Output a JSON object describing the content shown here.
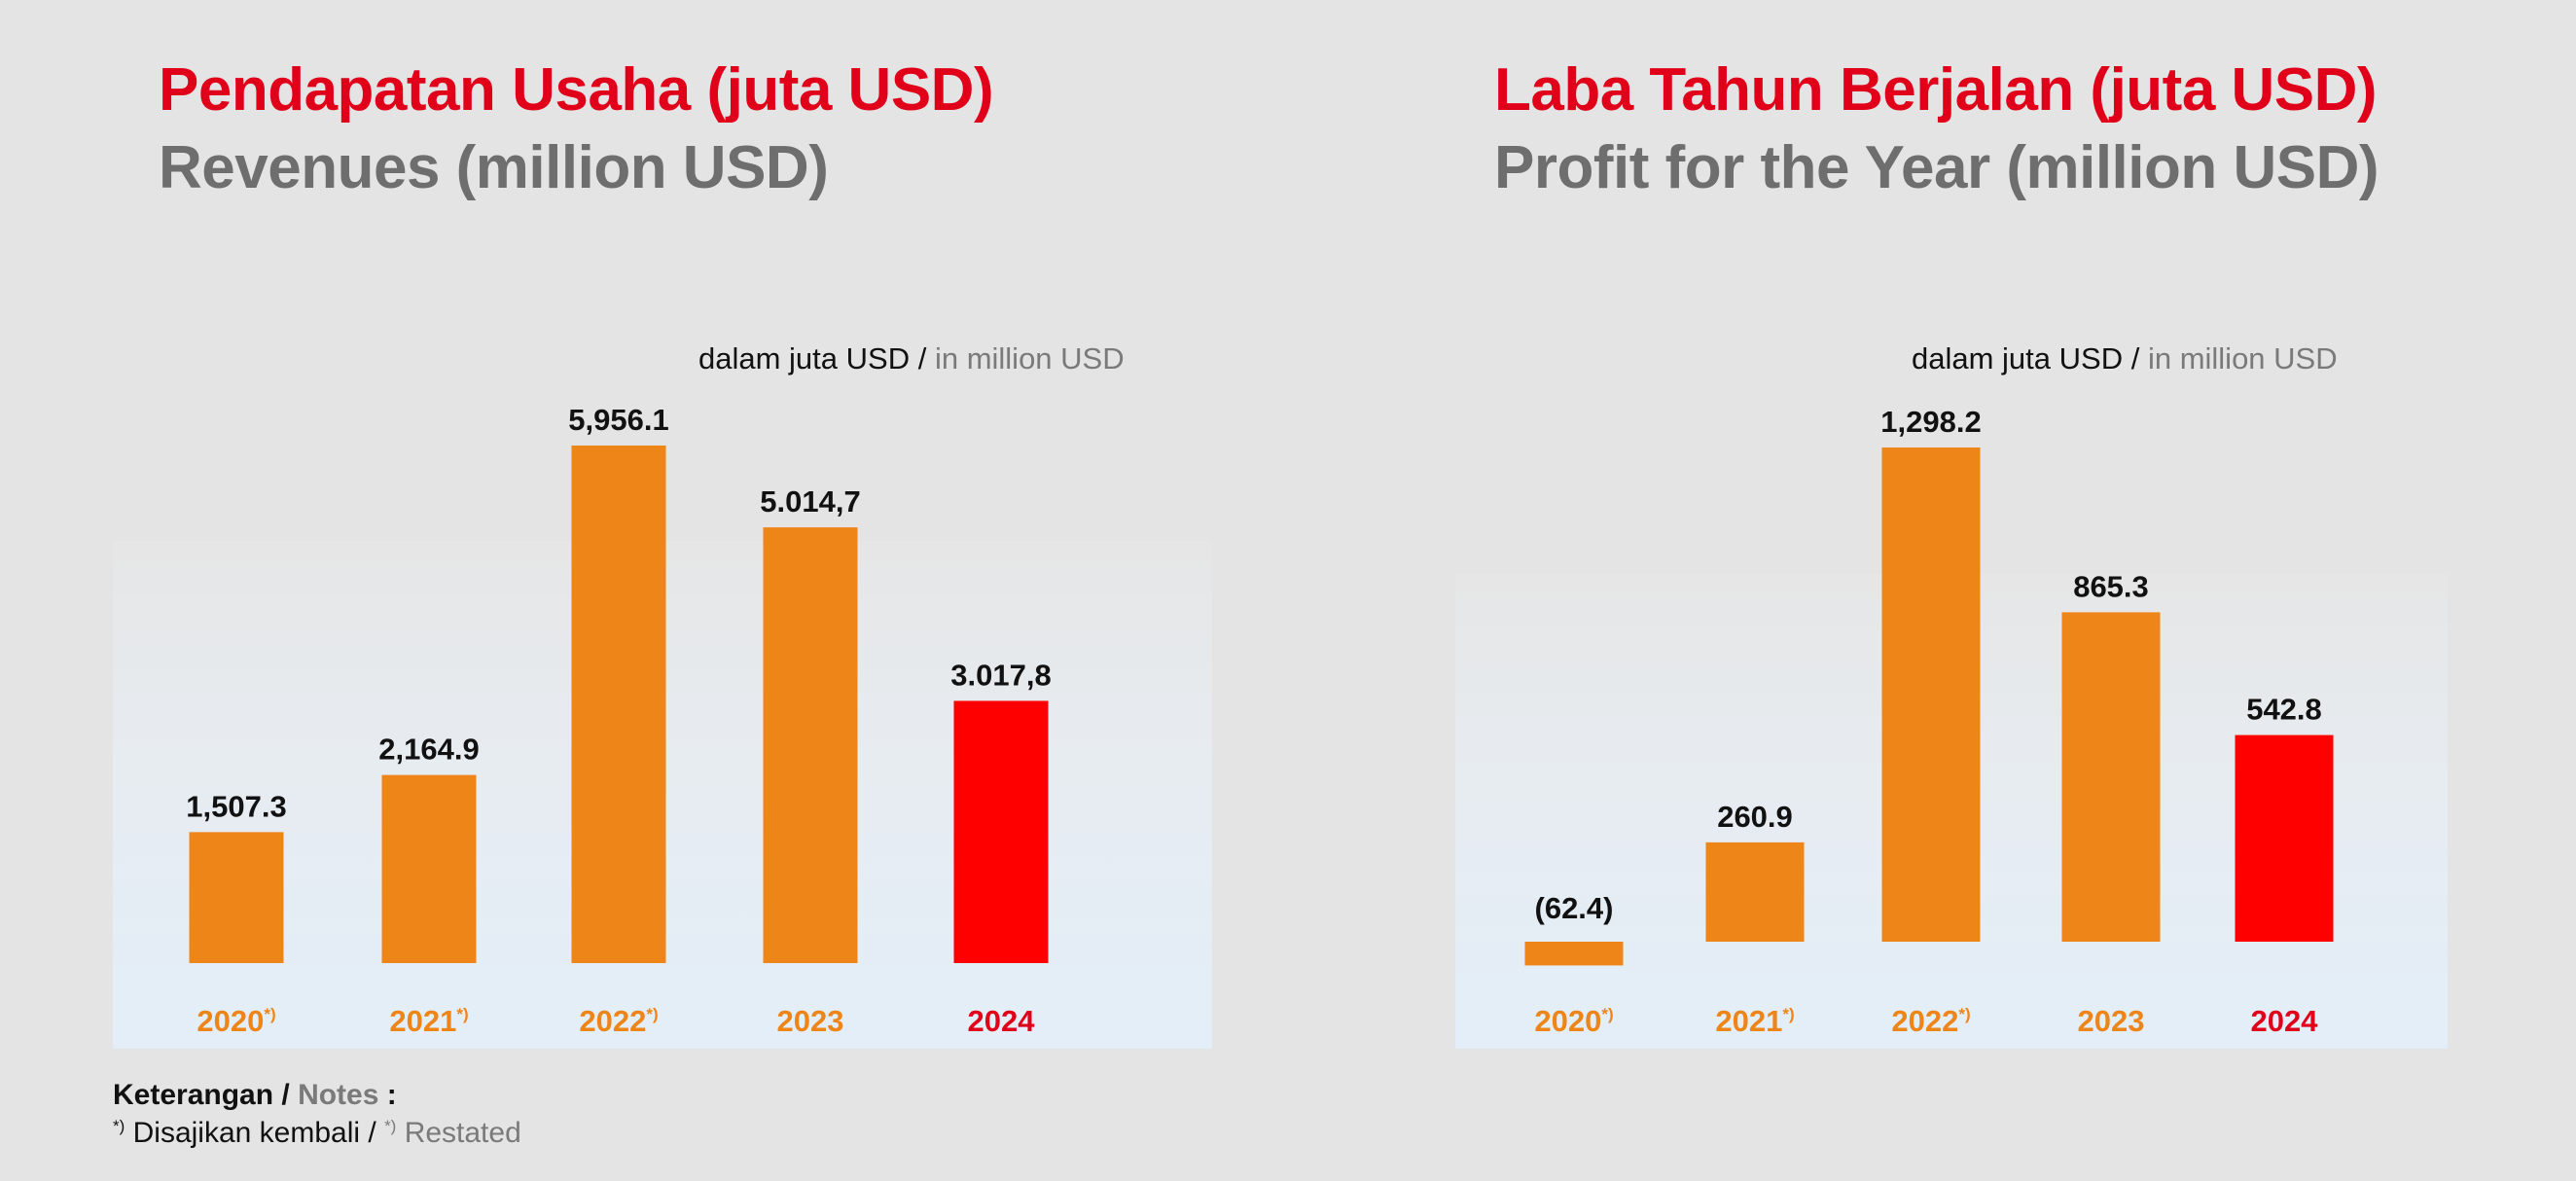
{
  "charts": [
    {
      "title_id": "Pendapatan Usaha (juta USD)",
      "title_en": "Revenues (million USD)",
      "unit_id": "dalam juta USD /",
      "unit_en": "in million USD"
    },
    {
      "title_id": "Laba Tahun Berjalan (juta USD)",
      "title_en": "Profit for the Year (million USD)",
      "unit_id": "dalam juta USD /",
      "unit_en": "in million USD"
    }
  ],
  "chart_data": [
    {
      "type": "bar",
      "title": "Pendapatan Usaha (juta USD) / Revenues (million USD)",
      "categories": [
        "2020*)",
        "2021*)",
        "2022*)",
        "2023",
        "2024"
      ],
      "values": [
        1507.3,
        2164.9,
        5956.1,
        5014.7,
        3017.8
      ],
      "value_labels": [
        "1,507.3",
        "2,164.9",
        "5,956.1",
        "5.014,7",
        "3.017,8"
      ],
      "category_labels": [
        {
          "year": "2020",
          "mark": "*)"
        },
        {
          "year": "2021",
          "mark": "*)"
        },
        {
          "year": "2022",
          "mark": "*)"
        },
        {
          "year": "2023",
          "mark": ""
        },
        {
          "year": "2024",
          "mark": ""
        }
      ],
      "bar_colors": [
        "#ed8519",
        "#ed8519",
        "#ed8519",
        "#ed8519",
        "#ff0000"
      ],
      "label_colors": [
        "#ed8519",
        "#ed8519",
        "#ed8519",
        "#ed8519",
        "#e1001a"
      ],
      "grid": false
    },
    {
      "type": "bar",
      "title": "Laba Tahun Berjalan (juta USD) / Profit for the Year (million USD)",
      "categories": [
        "2020*)",
        "2021*)",
        "2022*)",
        "2023",
        "2024"
      ],
      "values": [
        -62.4,
        260.9,
        1298.2,
        865.3,
        542.8
      ],
      "value_labels": [
        "(62.4)",
        "260.9",
        "1,298.2",
        "865.3",
        "542.8"
      ],
      "category_labels": [
        {
          "year": "2020",
          "mark": "*)"
        },
        {
          "year": "2021",
          "mark": "*)"
        },
        {
          "year": "2022",
          "mark": "*)"
        },
        {
          "year": "2023",
          "mark": ""
        },
        {
          "year": "2024",
          "mark": ""
        }
      ],
      "bar_colors": [
        "#ed8519",
        "#ed8519",
        "#ed8519",
        "#ed8519",
        "#ff0000"
      ],
      "label_colors": [
        "#ed8519",
        "#ed8519",
        "#ed8519",
        "#ed8519",
        "#e1001a"
      ],
      "grid": false
    }
  ],
  "notes": {
    "header_id": "Keterangan /",
    "header_en": "Notes",
    "colon": ":",
    "mark": "*)",
    "text_id": "Disajikan kembali /",
    "text_en": "Restated"
  }
}
